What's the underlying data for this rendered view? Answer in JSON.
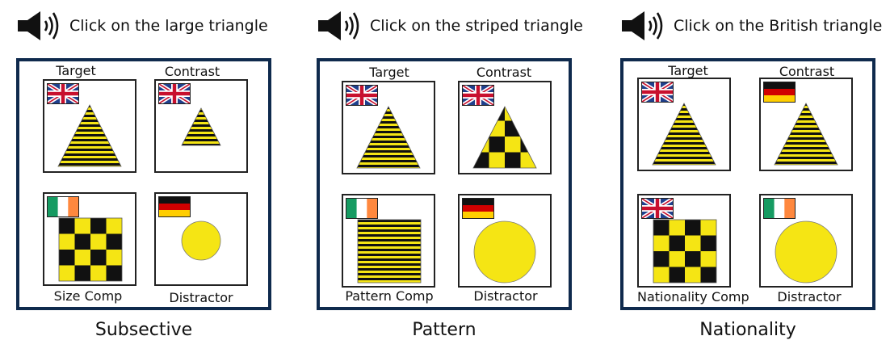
{
  "panels": [
    {
      "instruction": "Click on the large triangle",
      "caption": "Subsective",
      "labels": {
        "top_left": "Target",
        "top_right": "Contrast",
        "bottom_left": "Size Comp",
        "bottom_right": "Distractor"
      },
      "cards": [
        {
          "role": "target",
          "flag": "uk",
          "shape": "triangle",
          "pattern": "striped",
          "size": "large"
        },
        {
          "role": "contrast",
          "flag": "uk",
          "shape": "triangle",
          "pattern": "striped",
          "size": "small"
        },
        {
          "role": "competitor",
          "flag": "ireland",
          "shape": "square",
          "pattern": "checkered",
          "size": "large"
        },
        {
          "role": "distractor",
          "flag": "germany",
          "shape": "circle",
          "pattern": "plain",
          "size": "small"
        }
      ]
    },
    {
      "instruction": "Click on the striped triangle",
      "caption": "Pattern",
      "labels": {
        "top_left": "Target",
        "top_right": "Contrast",
        "bottom_left": "Pattern Comp",
        "bottom_right": "Distractor"
      },
      "cards": [
        {
          "role": "target",
          "flag": "uk",
          "shape": "triangle",
          "pattern": "striped",
          "size": "large"
        },
        {
          "role": "contrast",
          "flag": "uk",
          "shape": "triangle",
          "pattern": "checkered",
          "size": "large"
        },
        {
          "role": "competitor",
          "flag": "ireland",
          "shape": "square",
          "pattern": "striped",
          "size": "large"
        },
        {
          "role": "distractor",
          "flag": "germany",
          "shape": "circle",
          "pattern": "plain",
          "size": "large"
        }
      ]
    },
    {
      "instruction": "Click on the British triangle",
      "caption": "Nationality",
      "labels": {
        "top_left": "Target",
        "top_right": "Contrast",
        "bottom_left": "Nationality Comp",
        "bottom_right": "Distractor"
      },
      "cards": [
        {
          "role": "target",
          "flag": "uk",
          "shape": "triangle",
          "pattern": "striped",
          "size": "large"
        },
        {
          "role": "contrast",
          "flag": "germany",
          "shape": "triangle",
          "pattern": "striped",
          "size": "large"
        },
        {
          "role": "competitor",
          "flag": "uk",
          "shape": "square",
          "pattern": "checkered",
          "size": "large"
        },
        {
          "role": "distractor",
          "flag": "ireland",
          "shape": "circle",
          "pattern": "plain",
          "size": "large"
        }
      ]
    }
  ],
  "colors": {
    "frame": "#0f2a4d",
    "shape_fill": "#f5e514",
    "pattern_dark": "#111111"
  },
  "icons": {
    "audio": "speaker-icon"
  }
}
